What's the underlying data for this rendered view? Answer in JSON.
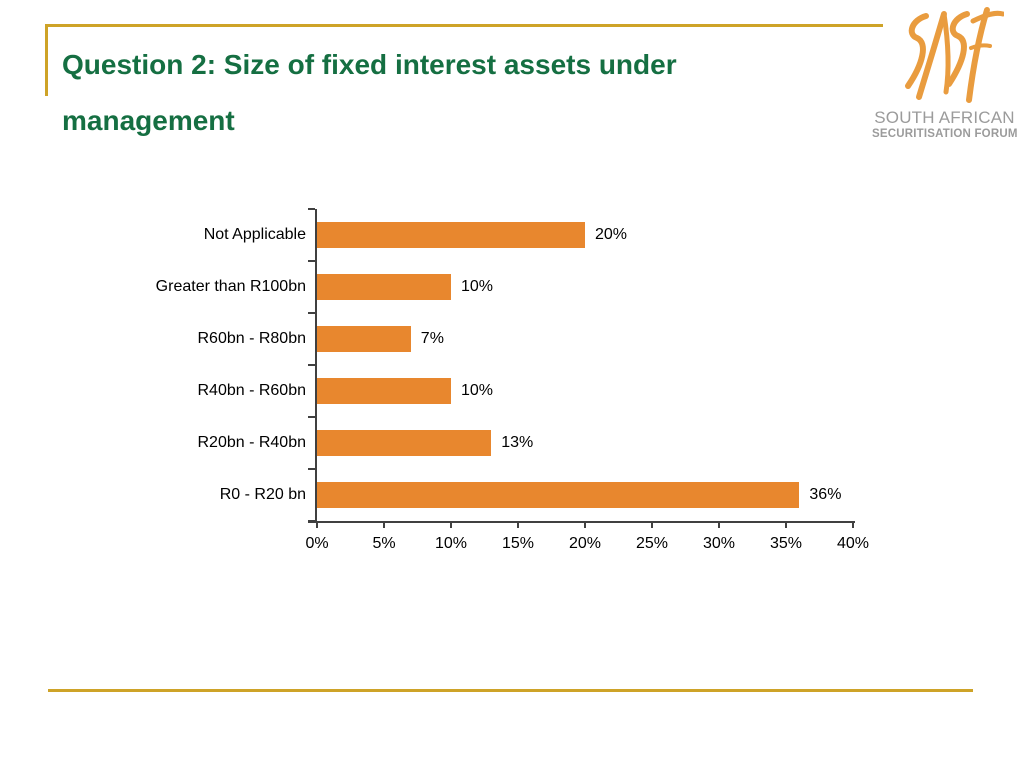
{
  "slide": {
    "title": "Question 2: Size of fixed interest assets under management",
    "title_line1": "Question 2: Size of fixed interest assets under",
    "title_line2": "management"
  },
  "logo": {
    "script_text": "SASF",
    "line1": "SOUTH AFRICAN",
    "line2": "SECURITISATION FORUM"
  },
  "colors": {
    "title_green": "#156F42",
    "gold_rule": "#CEA328",
    "bar_orange": "#E8872E",
    "logo_orange": "#E99C3F",
    "logo_gray": "#9B9B9B",
    "axis_gray": "#404040"
  },
  "chart_data": {
    "type": "bar",
    "orientation": "horizontal",
    "title": "",
    "xlabel": "",
    "ylabel": "",
    "categories": [
      "Not Applicable",
      "Greater than R100bn",
      "R60bn - R80bn",
      "R40bn - R60bn",
      "R20bn - R40bn",
      "R0 - R20 bn"
    ],
    "values": [
      20,
      10,
      7,
      10,
      13,
      36
    ],
    "data_labels": [
      "20%",
      "10%",
      "7%",
      "10%",
      "13%",
      "36%"
    ],
    "x_tick_labels": [
      "0%",
      "5%",
      "10%",
      "15%",
      "20%",
      "25%",
      "30%",
      "35%",
      "40%"
    ],
    "x_tick_values": [
      0,
      5,
      10,
      15,
      20,
      25,
      30,
      35,
      40
    ],
    "xlim": [
      0,
      40
    ],
    "grid": false,
    "legend": false,
    "bar_color": "#E8872E"
  }
}
